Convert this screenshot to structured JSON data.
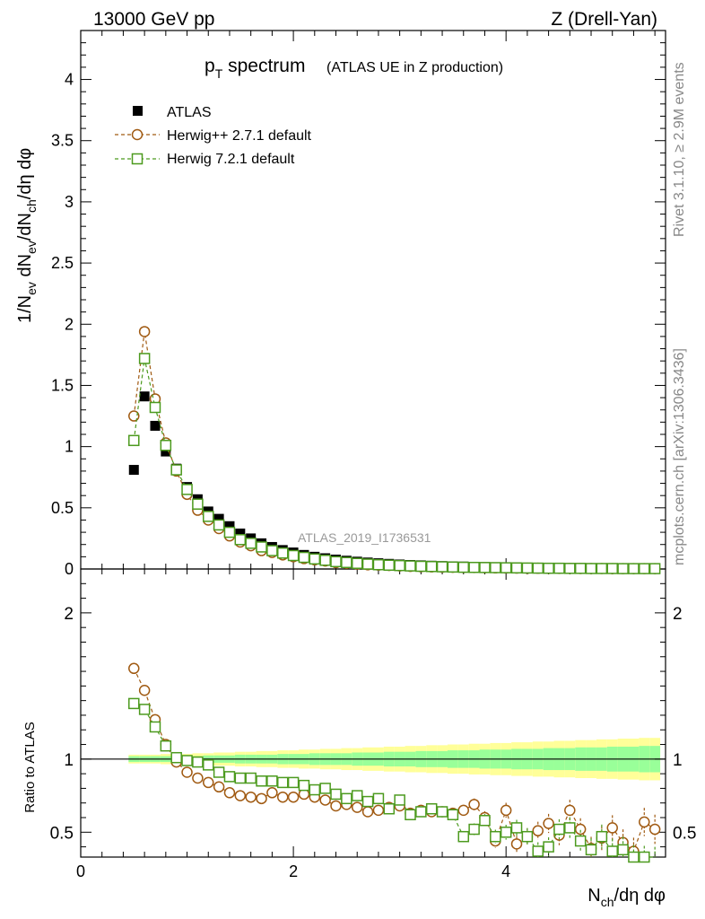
{
  "header": {
    "left": "13000 GeV pp",
    "right": "Z (Drell-Yan)"
  },
  "title": {
    "main_p": "p",
    "main_sub": "T",
    "main_rest": " spectrum",
    "paren": "(ATLAS UE in Z production)"
  },
  "ylabel_top": {
    "a": "1/N",
    "a_sub": "ev",
    "b": " dN",
    "b_sub": "ev",
    "c": "/dN",
    "c_sub": "ch",
    "d": "/dη dφ"
  },
  "ylabel_bottom": "Ratio to ATLAS",
  "xlabel": {
    "a": "N",
    "a_sub": "ch",
    "b": "/dη dφ"
  },
  "watermark": "ATLAS_2019_I1736531",
  "side_text_top": "Rivet 3.1.10, ≥ 2.9M events",
  "side_text_bottom": "mcplots.cern.ch [arXiv:1306.3436]",
  "legend": [
    {
      "label": "ATLAS",
      "color": "#000000",
      "marker": "filled-square"
    },
    {
      "label": "Herwig++ 2.7.1 default",
      "color": "#a05a12",
      "marker": "open-circle"
    },
    {
      "label": "Herwig 7.2.1 default",
      "color": "#4c9a1e",
      "marker": "open-square"
    }
  ],
  "chart_data": [
    {
      "type": "scatter",
      "panel": "main",
      "xlim": [
        0,
        5.5
      ],
      "ylim": [
        0,
        4.4
      ],
      "xticks": [
        0,
        2,
        4
      ],
      "yticks": [
        "0",
        "0.5",
        "1",
        "1.5",
        "2",
        "2.5",
        "3",
        "3.5",
        "4"
      ],
      "x": [
        0.5,
        0.6,
        0.7,
        0.8,
        0.9,
        1.0,
        1.1,
        1.2,
        1.3,
        1.4,
        1.5,
        1.6,
        1.7,
        1.8,
        1.9,
        2.0,
        2.1,
        2.2,
        2.3,
        2.4,
        2.5,
        2.6,
        2.7,
        2.8,
        2.9,
        3.0,
        3.1,
        3.2,
        3.3,
        3.4,
        3.5,
        3.6,
        3.7,
        3.8,
        3.9,
        4.0,
        4.1,
        4.2,
        4.3,
        4.4,
        4.5,
        4.6,
        4.7,
        4.8,
        4.9,
        5.0,
        5.1,
        5.2,
        5.3,
        5.4
      ],
      "series": [
        {
          "name": "ATLAS",
          "values": [
            0.81,
            1.41,
            1.17,
            0.96,
            0.82,
            0.67,
            0.57,
            0.47,
            0.41,
            0.35,
            0.29,
            0.25,
            0.21,
            0.18,
            0.155,
            0.135,
            0.115,
            0.1,
            0.088,
            0.077,
            0.068,
            0.06,
            0.053,
            0.047,
            0.042,
            0.037,
            0.033,
            0.03,
            0.027,
            0.024,
            0.022,
            0.02,
            0.018,
            0.016,
            0.015,
            0.014,
            0.012,
            0.011,
            0.01,
            0.01,
            0.009,
            0.008,
            0.008,
            0.007,
            0.007,
            0.006,
            0.006,
            0.005,
            0.005,
            0.005
          ]
        },
        {
          "name": "Herwig++ 2.7.1 default",
          "values": [
            1.25,
            1.94,
            1.39,
            1.03,
            0.8,
            0.61,
            0.48,
            0.4,
            0.33,
            0.27,
            0.22,
            0.19,
            0.15,
            0.135,
            0.115,
            0.1,
            0.085,
            0.075,
            0.065,
            0.052,
            0.046,
            0.04,
            0.034,
            0.031,
            0.028,
            0.025,
            0.021,
            0.019,
            0.017,
            0.015,
            0.014,
            0.013,
            0.012,
            0.01,
            0.009,
            0.008,
            0.007,
            0.006,
            0.006,
            0.005,
            0.005,
            0.005,
            0.004,
            0.004,
            0.004,
            0.003,
            0.003,
            0.003,
            0.003,
            0.003
          ]
        },
        {
          "name": "Herwig 7.2.1 default",
          "values": [
            1.05,
            1.72,
            1.32,
            1.01,
            0.81,
            0.65,
            0.53,
            0.43,
            0.36,
            0.3,
            0.24,
            0.21,
            0.18,
            0.15,
            0.13,
            0.11,
            0.095,
            0.082,
            0.071,
            0.06,
            0.053,
            0.046,
            0.04,
            0.035,
            0.031,
            0.028,
            0.025,
            0.022,
            0.02,
            0.018,
            0.016,
            0.014,
            0.013,
            0.012,
            0.011,
            0.01,
            0.009,
            0.008,
            0.007,
            0.006,
            0.006,
            0.005,
            0.005,
            0.004,
            0.004,
            0.004,
            0.003,
            0.003,
            0.003,
            0.003
          ]
        }
      ]
    },
    {
      "type": "scatter",
      "panel": "ratio",
      "ylabel": "Ratio to ATLAS",
      "xlim": [
        0,
        5.5
      ],
      "ylim": [
        0.33,
        2.3
      ],
      "xticks": [
        "0",
        "2",
        "4"
      ],
      "yticks": [
        "0.5",
        "1",
        "2"
      ],
      "x": [
        0.5,
        0.6,
        0.7,
        0.8,
        0.9,
        1.0,
        1.1,
        1.2,
        1.3,
        1.4,
        1.5,
        1.6,
        1.7,
        1.8,
        1.9,
        2.0,
        2.1,
        2.2,
        2.3,
        2.4,
        2.5,
        2.6,
        2.7,
        2.8,
        2.9,
        3.0,
        3.1,
        3.2,
        3.3,
        3.4,
        3.5,
        3.6,
        3.7,
        3.8,
        3.9,
        4.0,
        4.1,
        4.2,
        4.3,
        4.4,
        4.5,
        4.6,
        4.7,
        4.8,
        4.9,
        5.0,
        5.1,
        5.2,
        5.3,
        5.4
      ],
      "band_inner": [
        0.02,
        0.02,
        0.02,
        0.02,
        0.02,
        0.02,
        0.02,
        0.025,
        0.025,
        0.025,
        0.03,
        0.03,
        0.03,
        0.03,
        0.035,
        0.035,
        0.035,
        0.04,
        0.04,
        0.04,
        0.04,
        0.045,
        0.045,
        0.045,
        0.05,
        0.05,
        0.05,
        0.055,
        0.055,
        0.055,
        0.06,
        0.06,
        0.06,
        0.065,
        0.065,
        0.065,
        0.07,
        0.07,
        0.07,
        0.075,
        0.075,
        0.075,
        0.08,
        0.08,
        0.08,
        0.085,
        0.085,
        0.085,
        0.09,
        0.09
      ],
      "band_outer": [
        0.03,
        0.03,
        0.03,
        0.035,
        0.035,
        0.035,
        0.04,
        0.04,
        0.045,
        0.045,
        0.05,
        0.05,
        0.055,
        0.055,
        0.06,
        0.06,
        0.065,
        0.065,
        0.07,
        0.07,
        0.075,
        0.075,
        0.08,
        0.08,
        0.085,
        0.085,
        0.09,
        0.09,
        0.095,
        0.095,
        0.1,
        0.1,
        0.105,
        0.105,
        0.11,
        0.11,
        0.115,
        0.115,
        0.12,
        0.12,
        0.125,
        0.125,
        0.13,
        0.13,
        0.135,
        0.135,
        0.14,
        0.14,
        0.145,
        0.145
      ],
      "series": [
        {
          "name": "Herwig++ 2.7.1 default",
          "values": [
            1.62,
            1.47,
            1.27,
            1.1,
            0.98,
            0.91,
            0.87,
            0.84,
            0.81,
            0.77,
            0.75,
            0.74,
            0.73,
            0.77,
            0.74,
            0.74,
            0.76,
            0.74,
            0.72,
            0.68,
            0.69,
            0.67,
            0.64,
            0.65,
            0.67,
            0.68,
            0.63,
            0.65,
            0.64,
            0.64,
            0.63,
            0.65,
            0.69,
            0.6,
            0.44,
            0.65,
            0.42,
            0.47,
            0.51,
            0.56,
            0.48,
            0.65,
            0.52,
            0.39,
            0.46,
            0.53,
            0.43,
            0.37,
            0.57,
            0.52
          ]
        },
        {
          "name": "Herwig 7.2.1 default",
          "values": [
            1.38,
            1.34,
            1.22,
            1.09,
            1.01,
            0.99,
            0.98,
            0.96,
            0.91,
            0.88,
            0.87,
            0.87,
            0.85,
            0.85,
            0.84,
            0.84,
            0.82,
            0.79,
            0.8,
            0.76,
            0.73,
            0.75,
            0.71,
            0.73,
            0.66,
            0.72,
            0.62,
            0.64,
            0.66,
            0.64,
            0.62,
            0.47,
            0.52,
            0.58,
            0.47,
            0.5,
            0.53,
            0.47,
            0.37,
            0.4,
            0.52,
            0.53,
            0.44,
            0.38,
            0.47,
            0.37,
            0.38,
            0.32,
            0.31,
            0.3
          ]
        }
      ]
    }
  ]
}
